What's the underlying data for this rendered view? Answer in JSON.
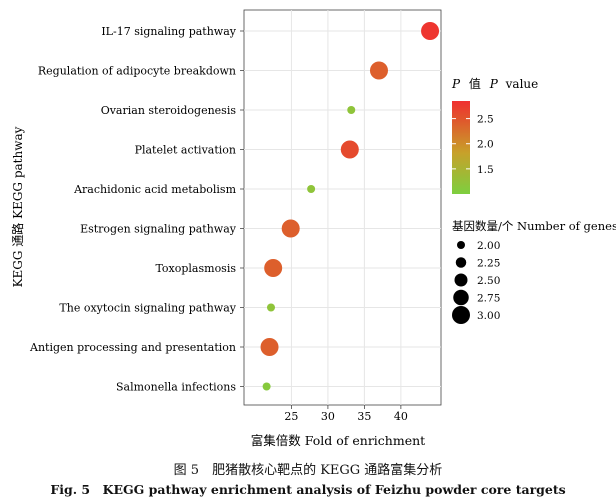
{
  "chart_data": {
    "type": "scatter",
    "xlabel": "富集倍数 Fold of enrichment",
    "ylabel": "KEGG 通路 KEGG pathway",
    "xlim": [
      18.5,
      45.5
    ],
    "xticks": [
      25,
      30,
      35,
      40
    ],
    "grid": true,
    "points": [
      {
        "pathway": "IL-17 signaling pathway",
        "fold": 44.0,
        "p_value": 2.8,
        "genes": 3
      },
      {
        "pathway": "Regulation of adipocyte breakdown",
        "fold": 37.0,
        "p_value": 2.4,
        "genes": 3
      },
      {
        "pathway": "Ovarian steroidogenesis",
        "fold": 33.2,
        "p_value": 1.2,
        "genes": 2
      },
      {
        "pathway": "Platelet activation",
        "fold": 33.0,
        "p_value": 2.6,
        "genes": 3
      },
      {
        "pathway": "Arachidonic acid metabolism",
        "fold": 27.7,
        "p_value": 1.2,
        "genes": 2
      },
      {
        "pathway": "Estrogen signaling pathway",
        "fold": 24.9,
        "p_value": 2.4,
        "genes": 3
      },
      {
        "pathway": "Toxoplasmosis",
        "fold": 22.5,
        "p_value": 2.4,
        "genes": 3
      },
      {
        "pathway": "The oxytocin signaling pathway",
        "fold": 22.2,
        "p_value": 1.2,
        "genes": 2
      },
      {
        "pathway": "Antigen processing and presentation",
        "fold": 22.0,
        "p_value": 2.4,
        "genes": 3
      },
      {
        "pathway": "Salmonella infections",
        "fold": 21.6,
        "p_value": 1.1,
        "genes": 2
      }
    ],
    "color_legend": {
      "title_italic": "P",
      "title_cn": "值",
      "title_tail": "value",
      "min": 1.0,
      "max": 2.85,
      "ticks": [
        1.5,
        2.0,
        2.5
      ],
      "tick_labels": [
        "1.5",
        "2.0",
        "2.5"
      ],
      "colors": [
        "#7dcf3f",
        "#c8a02a",
        "#e0562c",
        "#f03030"
      ]
    },
    "size_legend": {
      "title": "基因数量/个 Number of genes",
      "values": [
        2.0,
        2.25,
        2.5,
        2.75,
        3.0
      ],
      "labels": [
        "2.00",
        "2.25",
        "2.50",
        "2.75",
        "3.00"
      ]
    },
    "legend_position": "right"
  },
  "caption": {
    "cn": "图 5　肥猪散核心靶点的 KEGG 通路富集分析",
    "en": "Fig. 5　KEGG pathway enrichment analysis of Feizhu powder core targets"
  }
}
